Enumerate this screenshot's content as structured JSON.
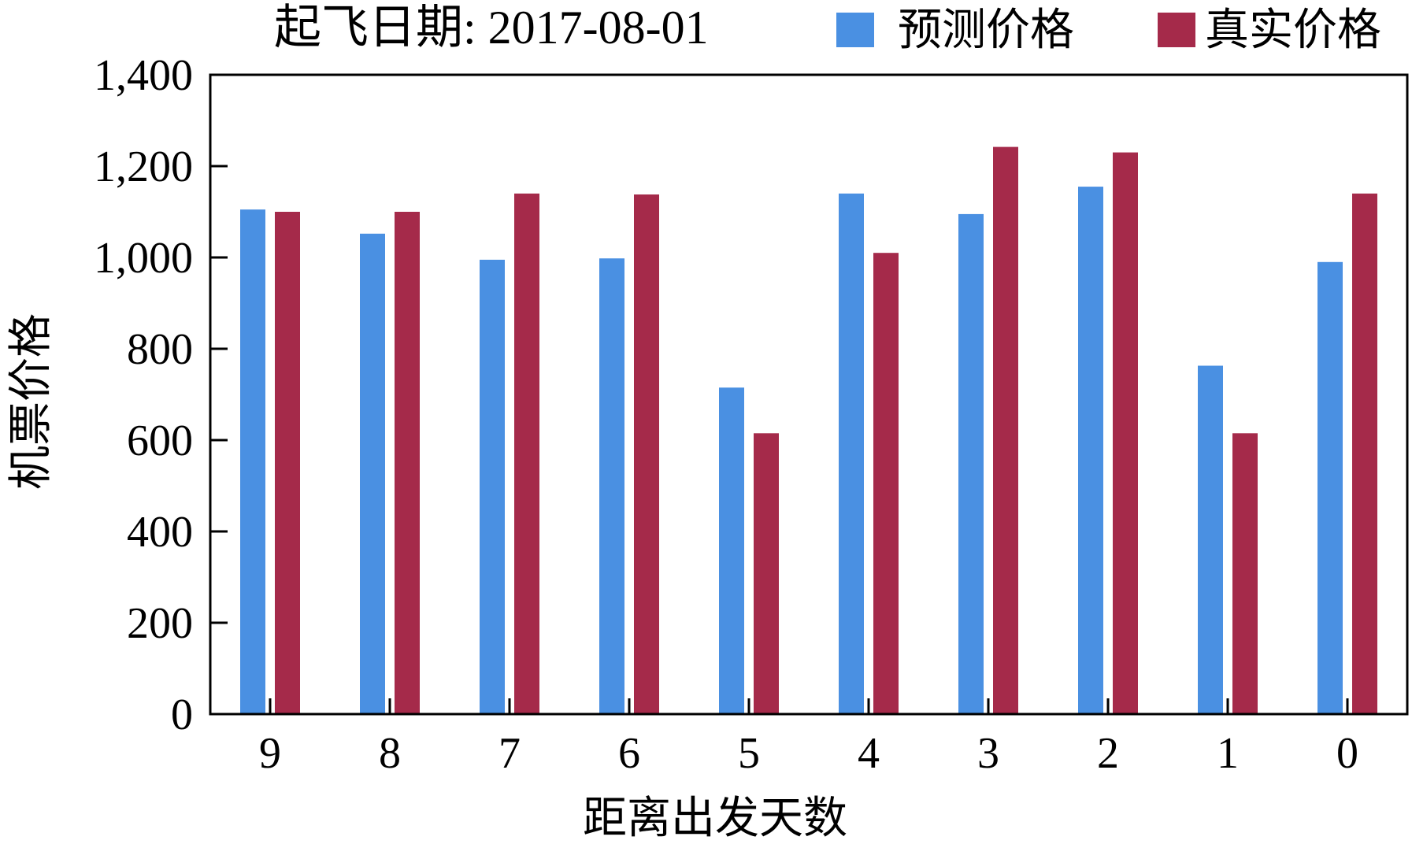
{
  "chart_data": {
    "type": "bar",
    "title": "起飞日期: 2017-08-01",
    "xlabel": "距离出发天数",
    "ylabel": "机票价格",
    "categories": [
      "9",
      "8",
      "7",
      "6",
      "5",
      "4",
      "3",
      "2",
      "1",
      "0"
    ],
    "series": [
      {
        "name": "预测价格",
        "color": "#4a90e2",
        "values": [
          1105,
          1052,
          995,
          998,
          715,
          1140,
          1095,
          1155,
          763,
          990
        ]
      },
      {
        "name": "真实价格",
        "color": "#a52a4a",
        "values": [
          1100,
          1100,
          1140,
          1138,
          615,
          1010,
          1242,
          1230,
          615,
          1140
        ]
      }
    ],
    "ylim": [
      0,
      1400
    ],
    "yticks": [
      0,
      200,
      400,
      600,
      800,
      1000,
      1200,
      1400
    ],
    "ytick_labels": [
      "0",
      "200",
      "400",
      "600",
      "800",
      "1,000",
      "1,200",
      "1,400"
    ],
    "grid": false,
    "legend_position": "top-right"
  }
}
